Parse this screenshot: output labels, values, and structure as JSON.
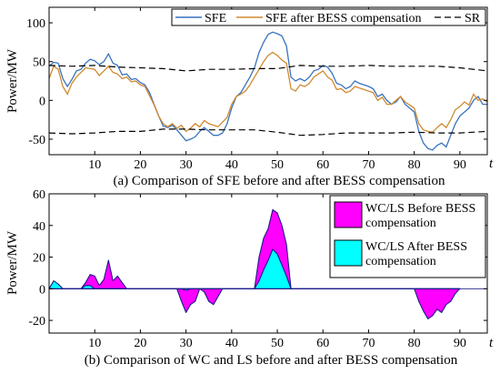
{
  "chart_data": [
    {
      "type": "line",
      "caption": "(a) Comparison of SFE before and after BESS compensation",
      "ylabel": "Power/MW",
      "xlabel": "t",
      "xlim": [
        0,
        96
      ],
      "ylim": [
        -70,
        120
      ],
      "xticks": [
        10,
        20,
        30,
        40,
        50,
        60,
        70,
        80,
        90
      ],
      "yticks": [
        100,
        50,
        0,
        -50
      ],
      "legend_position": "top-right",
      "series": [
        {
          "name": "SFE",
          "color": "#3a72bf",
          "style": "solid",
          "x": [
            0,
            1,
            2,
            3,
            4,
            5,
            6,
            7,
            8,
            9,
            10,
            11,
            12,
            13,
            14,
            15,
            16,
            17,
            18,
            19,
            20,
            21,
            22,
            23,
            24,
            25,
            26,
            27,
            28,
            29,
            30,
            31,
            32,
            33,
            34,
            35,
            36,
            37,
            38,
            39,
            40,
            41,
            42,
            43,
            44,
            45,
            46,
            47,
            48,
            49,
            50,
            51,
            52,
            53,
            54,
            55,
            56,
            57,
            58,
            59,
            60,
            61,
            62,
            63,
            64,
            65,
            66,
            67,
            68,
            69,
            70,
            71,
            72,
            73,
            74,
            75,
            76,
            77,
            78,
            79,
            80,
            81,
            82,
            83,
            84,
            85,
            86,
            87,
            88,
            89,
            90,
            91,
            92,
            93,
            94,
            95,
            96
          ],
          "values": [
            44,
            49,
            48,
            28,
            18,
            27,
            38,
            40,
            48,
            53,
            51,
            46,
            50,
            60,
            48,
            45,
            33,
            34,
            27,
            28,
            23,
            20,
            10,
            -5,
            -20,
            -33,
            -35,
            -32,
            -38,
            -45,
            -52,
            -50,
            -47,
            -40,
            -35,
            -40,
            -45,
            -45,
            -42,
            -30,
            -10,
            5,
            10,
            20,
            30,
            42,
            62,
            75,
            85,
            88,
            86,
            83,
            70,
            30,
            25,
            28,
            25,
            30,
            38,
            40,
            45,
            43,
            35,
            22,
            20,
            15,
            18,
            25,
            22,
            20,
            18,
            15,
            5,
            8,
            0,
            -5,
            -2,
            5,
            -5,
            -10,
            -15,
            -40,
            -55,
            -62,
            -64,
            -58,
            -55,
            -60,
            -45,
            -30,
            -20,
            -15,
            -10,
            0,
            5,
            -5,
            -5
          ]
        },
        {
          "name": "SFE after BESS compensation",
          "color": "#d08a30",
          "style": "solid",
          "x": [
            0,
            1,
            2,
            3,
            4,
            5,
            6,
            7,
            8,
            9,
            10,
            11,
            12,
            13,
            14,
            15,
            16,
            17,
            18,
            19,
            20,
            21,
            22,
            23,
            24,
            25,
            26,
            27,
            28,
            29,
            30,
            31,
            32,
            33,
            34,
            35,
            36,
            37,
            38,
            39,
            40,
            41,
            42,
            43,
            44,
            45,
            46,
            47,
            48,
            49,
            50,
            51,
            52,
            53,
            54,
            55,
            56,
            57,
            58,
            59,
            60,
            61,
            62,
            63,
            64,
            65,
            66,
            67,
            68,
            69,
            70,
            71,
            72,
            73,
            74,
            75,
            76,
            77,
            78,
            79,
            80,
            81,
            82,
            83,
            84,
            85,
            86,
            87,
            88,
            89,
            90,
            91,
            92,
            93,
            94,
            95,
            96
          ],
          "values": [
            28,
            44,
            40,
            18,
            8,
            22,
            30,
            36,
            42,
            41,
            40,
            32,
            38,
            44,
            36,
            34,
            28,
            30,
            24,
            25,
            20,
            18,
            6,
            -6,
            -20,
            -30,
            -34,
            -30,
            -36,
            -32,
            -40,
            -36,
            -30,
            -34,
            -26,
            -30,
            -32,
            -34,
            -28,
            -22,
            -5,
            5,
            8,
            12,
            20,
            30,
            40,
            50,
            58,
            62,
            58,
            52,
            48,
            15,
            12,
            20,
            18,
            22,
            30,
            34,
            38,
            30,
            26,
            14,
            15,
            10,
            12,
            18,
            16,
            14,
            12,
            10,
            0,
            4,
            -5,
            -5,
            0,
            5,
            -2,
            -6,
            -10,
            -30,
            -38,
            -40,
            -41,
            -35,
            -30,
            -35,
            -25,
            -12,
            -8,
            -2,
            -6,
            8,
            0,
            2,
            -2
          ]
        },
        {
          "name": "SR",
          "color": "#000000",
          "style": "dashed",
          "x": [
            0,
            5,
            10,
            15,
            20,
            25,
            30,
            35,
            40,
            45,
            50,
            55,
            60,
            65,
            70,
            75,
            80,
            85,
            90,
            96
          ],
          "values": [
            45,
            44,
            45,
            43,
            42,
            41,
            38,
            40,
            40,
            41,
            41,
            45,
            44,
            44,
            45,
            44,
            44,
            44,
            42,
            38
          ]
        },
        {
          "name": "SR (lower)",
          "color": "#000000",
          "style": "dashed",
          "x": [
            0,
            5,
            10,
            15,
            20,
            25,
            30,
            35,
            40,
            45,
            50,
            55,
            60,
            65,
            70,
            75,
            80,
            85,
            90,
            96
          ],
          "values": [
            -42,
            -43,
            -42,
            -40,
            -40,
            -37,
            -37,
            -38,
            -38,
            -38,
            -41,
            -45,
            -44,
            -42,
            -42,
            -42,
            -41,
            -42,
            -42,
            -40
          ]
        }
      ]
    },
    {
      "type": "area",
      "caption": "(b) Comparison of WC and LS before and after BESS compensation",
      "ylabel": "Power/MW",
      "xlabel": "t",
      "xlim": [
        0,
        96
      ],
      "ylim": [
        -28,
        60
      ],
      "xticks": [
        10,
        20,
        30,
        40,
        50,
        60,
        70,
        80,
        90
      ],
      "yticks": [
        60,
        40,
        20,
        0,
        -20
      ],
      "legend_position": "top-right",
      "series": [
        {
          "name": "WC/LS Before BESS compensation",
          "color": "#ff00ff",
          "x": [
            0,
            1,
            2,
            3,
            4,
            5,
            6,
            7,
            8,
            9,
            10,
            11,
            12,
            13,
            14,
            15,
            16,
            17,
            18,
            28,
            29,
            30,
            31,
            32,
            33,
            34,
            35,
            36,
            37,
            38,
            45,
            46,
            47,
            48,
            49,
            50,
            51,
            52,
            53,
            54,
            80,
            81,
            82,
            83,
            84,
            85,
            86,
            87,
            88,
            89,
            90
          ],
          "values": [
            0,
            4,
            3,
            0,
            0,
            0,
            0,
            0,
            4,
            9,
            8,
            2,
            6,
            18,
            5,
            8,
            4,
            0,
            0,
            0,
            -8,
            -15,
            -10,
            -8,
            0,
            -2,
            -8,
            -10,
            -5,
            0,
            0,
            20,
            32,
            38,
            50,
            48,
            40,
            28,
            0,
            0,
            0,
            -8,
            -14,
            -19,
            -17,
            -13,
            -15,
            -10,
            -8,
            -3,
            0
          ]
        },
        {
          "name": "WC/LS After BESS compensation",
          "color": "#00ffff",
          "x": [
            0,
            1,
            2,
            3,
            4,
            5,
            6,
            7,
            8,
            9,
            10,
            11,
            12,
            13,
            14,
            15,
            16,
            17,
            18,
            28,
            29,
            30,
            31,
            32,
            33,
            34,
            35,
            36,
            37,
            38,
            45,
            46,
            47,
            48,
            49,
            50,
            51,
            52,
            53,
            54,
            80,
            81,
            82,
            83,
            84,
            85,
            86,
            87,
            88,
            89,
            90
          ],
          "values": [
            0,
            5,
            3,
            0,
            0,
            0,
            0,
            0,
            2,
            2,
            0,
            0,
            0,
            0,
            0,
            0,
            0,
            0,
            0,
            0,
            0,
            -1,
            0,
            0,
            0,
            0,
            0,
            0,
            0,
            0,
            0,
            5,
            12,
            18,
            25,
            22,
            15,
            8,
            0,
            0,
            0,
            0,
            0,
            0,
            0,
            0,
            0,
            0,
            0,
            0,
            0
          ]
        }
      ]
    }
  ]
}
